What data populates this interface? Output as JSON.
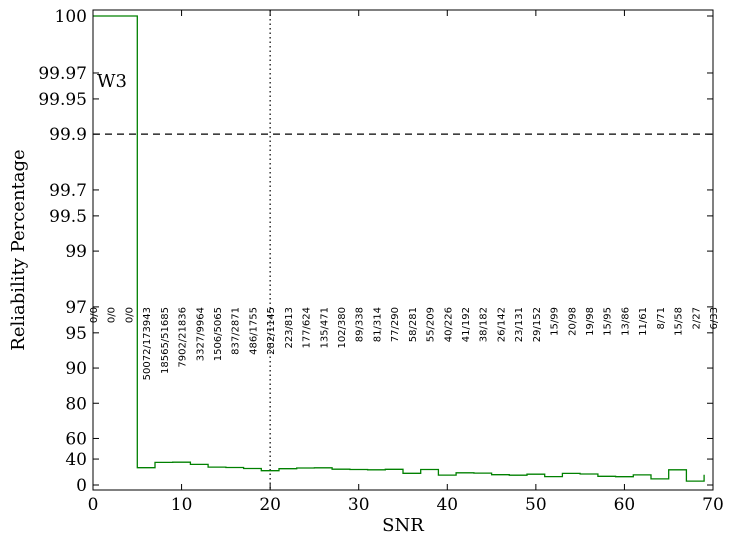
{
  "chart_data": {
    "type": "step",
    "xlabel": "SNR",
    "ylabel": "Reliability Percentage",
    "yscale": "log-complement",
    "xlim": [
      0,
      70
    ],
    "xticks": [
      0,
      10,
      20,
      30,
      40,
      50,
      60,
      70
    ],
    "ylim": [
      0,
      100
    ],
    "yticks": [
      0,
      40,
      60,
      80,
      90,
      95,
      97,
      99,
      99.5,
      99.7,
      99.9,
      99.95,
      99.97,
      100
    ],
    "hline": 99.9,
    "vline": 20,
    "text": "W3",
    "x": [
      0,
      2,
      4,
      6,
      8,
      10,
      12,
      14,
      16,
      18,
      20,
      22,
      24,
      26,
      28,
      30,
      32,
      34,
      36,
      38,
      40,
      42,
      44,
      46,
      48,
      50,
      52,
      54,
      56,
      58,
      60,
      62,
      64,
      66,
      68,
      70
    ],
    "series": [
      {
        "color": "#008000",
        "values": [
          100,
          100,
          100,
          28.8,
          35.9,
          36.2,
          33.4,
          29.7,
          29.2,
          27.7,
          24.6,
          27.4,
          28.4,
          28.7,
          26.8,
          26.3,
          25.8,
          26.6,
          20.6,
          26.3,
          17.7,
          21.4,
          20.9,
          18.3,
          17.6,
          19.1,
          15.2,
          20.4,
          19.4,
          15.8,
          15.1,
          18.0,
          11.3,
          25.9,
          7.4,
          18.2
        ]
      }
    ],
    "annotations": [
      "0/0",
      "0/0",
      "0/0",
      "50072/173943",
      "18565/51685",
      "7902/21836",
      "3327/9964",
      "1506/5065",
      "837/2871",
      "486/1755",
      "282/1145",
      "223/813",
      "177/624",
      "135/471",
      "102/380",
      "89/338",
      "81/314",
      "77/290",
      "58/281",
      "55/209",
      "40/226",
      "41/192",
      "38/182",
      "26/142",
      "23/131",
      "29/152",
      "15/99",
      "20/98",
      "19/98",
      "15/95",
      "13/86",
      "11/61",
      "8/71",
      "15/58",
      "2/27",
      "6/33"
    ]
  }
}
